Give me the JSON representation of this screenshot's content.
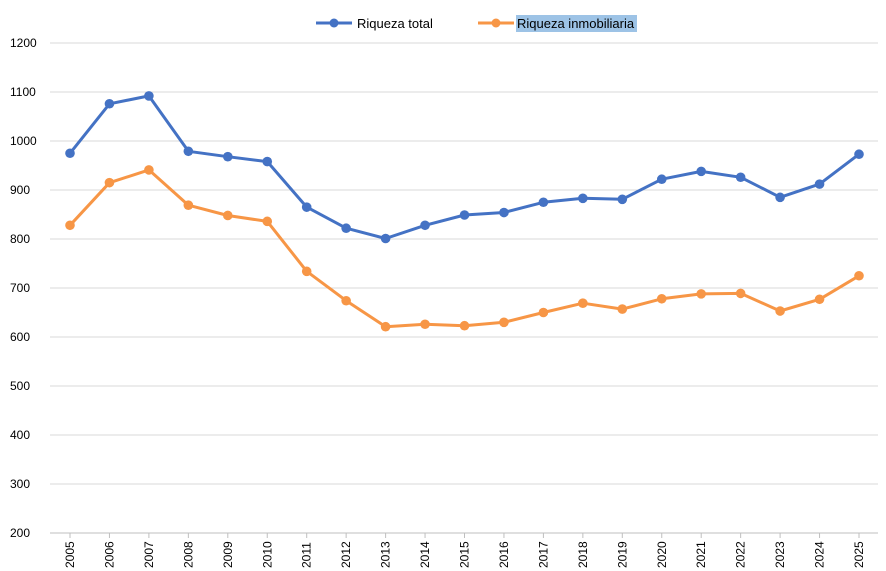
{
  "chart_data": {
    "type": "line",
    "title": "",
    "xlabel": "",
    "ylabel": "",
    "ylim": [
      200,
      1200
    ],
    "yticks": [
      200,
      300,
      400,
      500,
      600,
      700,
      800,
      900,
      1000,
      1100,
      1200
    ],
    "grid": true,
    "legend_position": "top-center",
    "x": [
      "2005",
      "2006",
      "2007",
      "2008",
      "2009",
      "2010",
      "2011",
      "2012",
      "2013",
      "2014",
      "2015",
      "2016",
      "2017",
      "2018",
      "2019",
      "2020",
      "2021",
      "2022",
      "2023",
      "2024",
      "2025"
    ],
    "series": [
      {
        "name": "Riqueza total",
        "color": "#4472C4",
        "values": [
          975,
          1076,
          1092,
          979,
          968,
          958,
          865,
          822,
          801,
          828,
          849,
          854,
          875,
          883,
          881,
          922,
          938,
          926,
          885,
          912,
          973
        ]
      },
      {
        "name": "Riqueza inmobiliaria",
        "color": "#F79646",
        "highlight": "#9DC3E6",
        "values": [
          828,
          915,
          941,
          869,
          848,
          836,
          734,
          674,
          621,
          626,
          623,
          630,
          650,
          669,
          657,
          678,
          688,
          689,
          653,
          677,
          725
        ]
      }
    ]
  }
}
